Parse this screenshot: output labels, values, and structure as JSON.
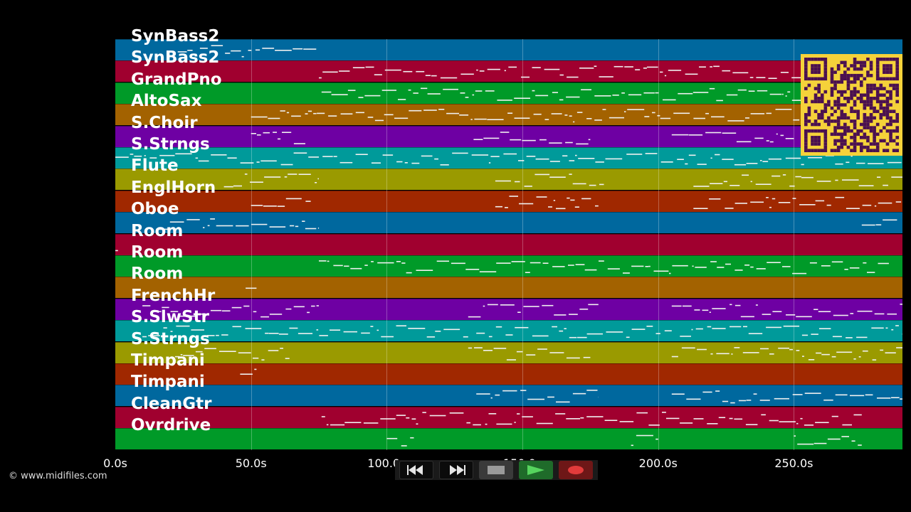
{
  "tracks": [
    {
      "name": "SynBass2",
      "color": "#00689e"
    },
    {
      "name": "SynBass2",
      "color": "#a0002f"
    },
    {
      "name": "GrandPno",
      "color": "#009a28"
    },
    {
      "name": "AltoSax",
      "color": "#a36200"
    },
    {
      "name": "S.Choir",
      "color": "#6e00a3"
    },
    {
      "name": "S.Strngs",
      "color": "#009a9a"
    },
    {
      "name": "Flute",
      "color": "#9a9a00"
    },
    {
      "name": "EnglHorn",
      "color": "#a02800"
    },
    {
      "name": "Oboe",
      "color": "#00689e"
    },
    {
      "name": "Room",
      "color": "#a0002f"
    },
    {
      "name": "Room",
      "color": "#009a28"
    },
    {
      "name": "Room",
      "color": "#a36200"
    },
    {
      "name": "FrenchHr",
      "color": "#6e00a3"
    },
    {
      "name": "S.SlwStr",
      "color": "#009a9a"
    },
    {
      "name": "S.Strngs",
      "color": "#9a9a00"
    },
    {
      "name": "Timpani",
      "color": "#a02800"
    },
    {
      "name": "Timpani",
      "color": "#00689e"
    },
    {
      "name": "CleanGtr",
      "color": "#a0002f"
    },
    {
      "name": "Ovrdrive",
      "color": "#009a28"
    }
  ],
  "timeline": {
    "ticks": [
      "0.0s",
      "50.0s",
      "100.0s",
      "150.0s",
      "200.0s",
      "250.0s"
    ],
    "tick_seconds": [
      0,
      50,
      100,
      150,
      200,
      250
    ],
    "max_seconds": 290
  },
  "copyright": "© www.midifiles.com",
  "transport": {
    "rewind_icon": "rewind-icon",
    "forward_icon": "fast-forward-icon",
    "stop_icon": "stop-icon",
    "play_icon": "play-icon",
    "record_icon": "record-icon"
  },
  "qr_colors": {
    "bg": "#f5d23a",
    "fg": "#4a1050"
  }
}
